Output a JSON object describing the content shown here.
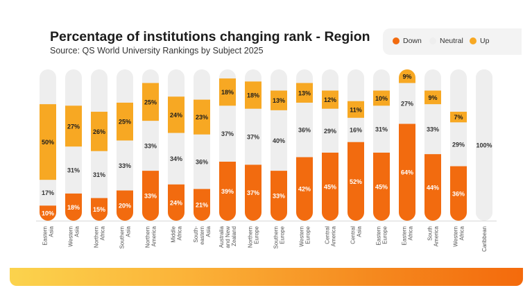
{
  "title": "Percentage of institutions changing rank - Region",
  "subtitle": "Source: QS World University Rankings by Subject 2025",
  "colors": {
    "down": "#f26b0f",
    "neutral": "#eeeeee",
    "up": "#f7a823"
  },
  "legend": [
    {
      "key": "down",
      "label": "Down"
    },
    {
      "key": "neutral",
      "label": "Neutral"
    },
    {
      "key": "up",
      "label": "Up"
    }
  ],
  "chart_data": {
    "type": "bar",
    "stacked": true,
    "orientation": "vertical",
    "categories": [
      [
        "Eastern",
        "Asia"
      ],
      [
        "Western",
        "Asia"
      ],
      [
        "Northern",
        "Africa"
      ],
      [
        "Southern",
        "Asia"
      ],
      [
        "Northern",
        "America"
      ],
      [
        "Middle",
        "Africa"
      ],
      [
        "South-",
        "eastern",
        "Asia"
      ],
      [
        "Australia",
        "and New",
        "Zealand"
      ],
      [
        "Northern",
        "Europe"
      ],
      [
        "Southern",
        "Europe"
      ],
      [
        "Western",
        "Europe"
      ],
      [
        "Central",
        "America"
      ],
      [
        "Central",
        "Asia"
      ],
      [
        "Eastern",
        "Europe"
      ],
      [
        "Eastern",
        "Africa"
      ],
      [
        "South",
        "America"
      ],
      [
        "Western",
        "Africa"
      ],
      [
        "Caribbean"
      ]
    ],
    "series": [
      {
        "name": "Down",
        "values": [
          10,
          18,
          15,
          20,
          33,
          24,
          21,
          39,
          37,
          33,
          42,
          45,
          52,
          45,
          64,
          44,
          36,
          0
        ]
      },
      {
        "name": "Neutral",
        "values": [
          17,
          31,
          31,
          33,
          33,
          34,
          36,
          37,
          37,
          40,
          36,
          29,
          16,
          31,
          27,
          33,
          29,
          100
        ]
      },
      {
        "name": "Up",
        "values": [
          50,
          27,
          26,
          25,
          25,
          24,
          23,
          18,
          18,
          13,
          13,
          12,
          11,
          10,
          9,
          9,
          7,
          0
        ]
      }
    ],
    "labels": {
      "down": [
        "10%",
        "18%",
        "15%",
        "20%",
        "33%",
        "24%",
        "21%",
        "39%",
        "37%",
        "33%",
        "42%",
        "45%",
        "52%",
        "45%",
        "64%",
        "44%",
        "36%",
        ""
      ],
      "neutral": [
        "17%",
        "31%",
        "31%",
        "33%",
        "33%",
        "34%",
        "36%",
        "37%",
        "37%",
        "40%",
        "36%",
        "29%",
        "16%",
        "31%",
        "27%",
        "33%",
        "29%",
        "100%"
      ],
      "up": [
        "50%",
        "27%",
        "26%",
        "25%",
        "25%",
        "24%",
        "23%",
        "18%",
        "18%",
        "13%",
        "13%",
        "12%",
        "11%",
        "10%",
        "9%",
        "9%",
        "7%",
        ""
      ]
    },
    "ylim": [
      0,
      100
    ],
    "grid": false,
    "legend_position": "top-right"
  }
}
